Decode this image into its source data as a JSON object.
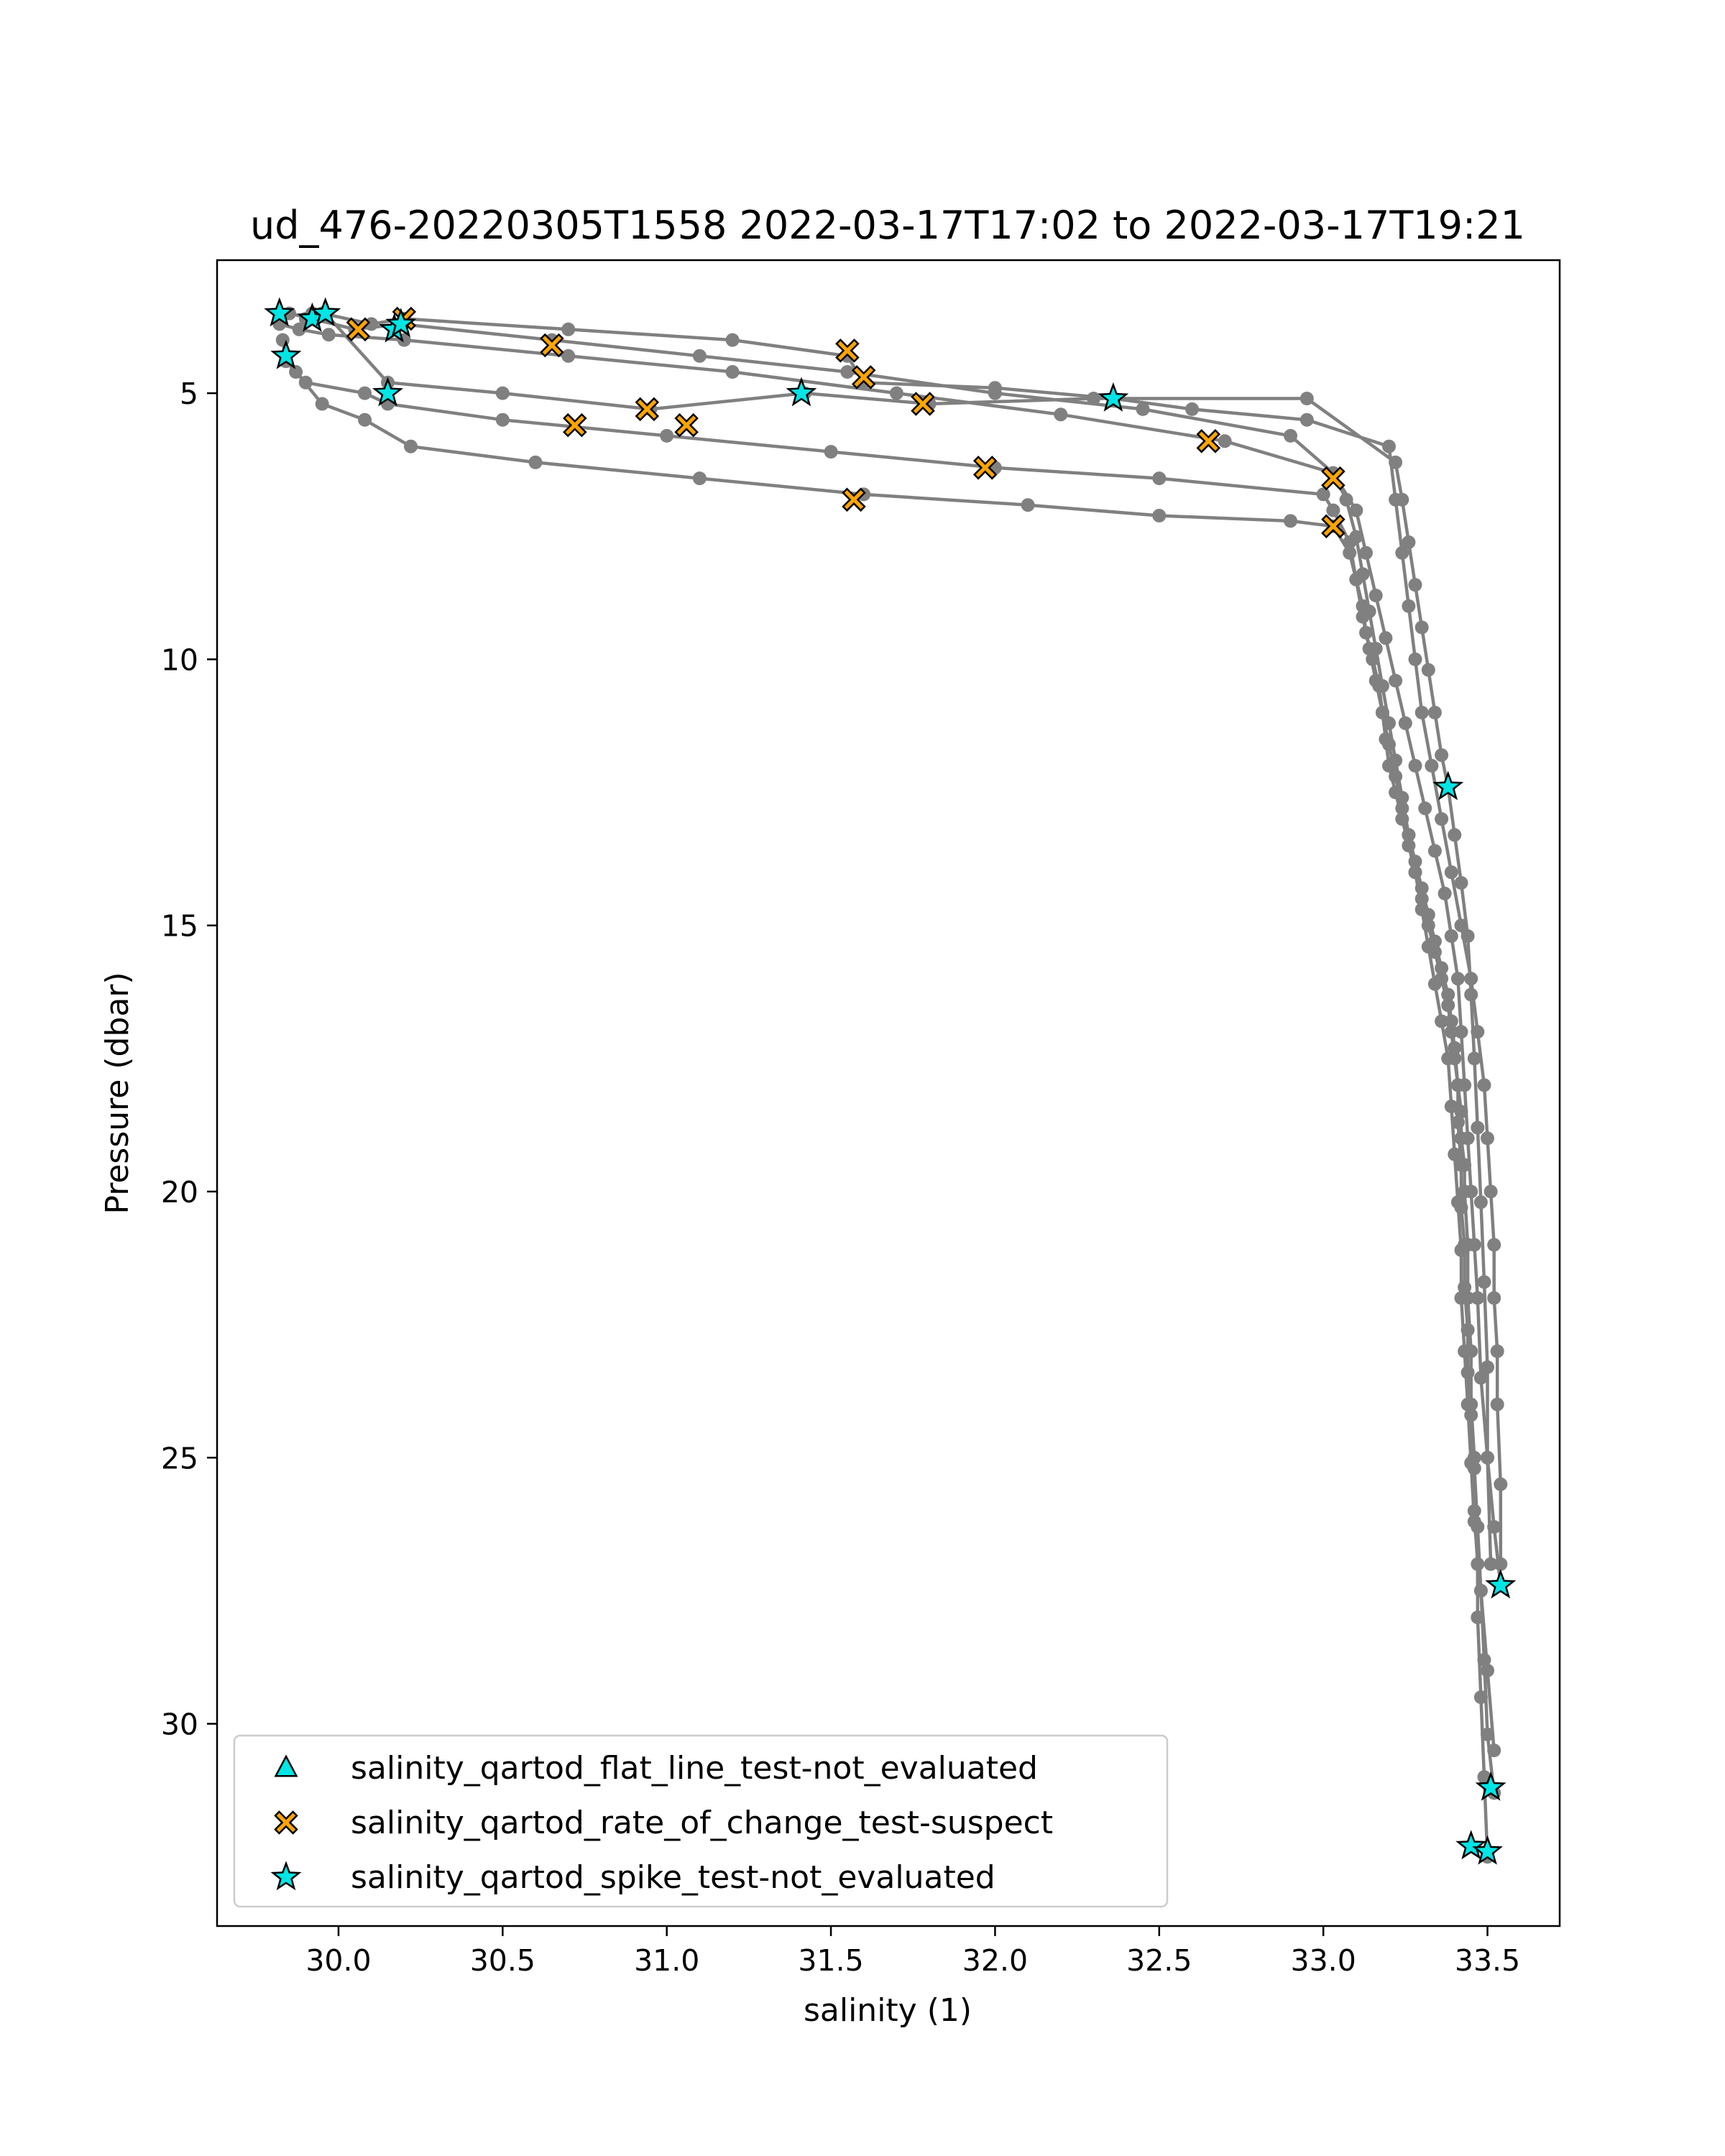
{
  "chart_data": {
    "type": "line",
    "title": "ud_476-20220305T1558 2022-03-17T17:02 to 2022-03-17T19:21",
    "xlabel": "salinity (1)",
    "ylabel": "Pressure (dbar)",
    "xlim": [
      29.63,
      33.72
    ],
    "ylim": [
      33.8,
      2.5
    ],
    "y_inverted": true,
    "grid": false,
    "legend_position": "lower-left",
    "x_ticks": [
      30.0,
      30.5,
      31.0,
      31.5,
      32.0,
      32.5,
      33.0,
      33.5
    ],
    "x_tick_labels": [
      "30.0",
      "30.5",
      "31.0",
      "31.5",
      "32.0",
      "32.5",
      "33.0",
      "33.5"
    ],
    "y_ticks": [
      5,
      10,
      15,
      20,
      25,
      30
    ],
    "y_tick_labels": [
      "5",
      "10",
      "15",
      "20",
      "25",
      "30"
    ],
    "colors": {
      "profile_line": "#808080",
      "flat_line": "#00e5e5",
      "rate_of_change": "#ffa500",
      "spike": "#00e5e5"
    },
    "profiles": [
      {
        "x": [
          29.84,
          29.87,
          29.95,
          30.08,
          30.22,
          30.6,
          31.1,
          31.6,
          32.1,
          32.5,
          32.9,
          33.03,
          33.08,
          33.1,
          33.12,
          33.13,
          33.15,
          33.17,
          33.18,
          33.19,
          33.2,
          33.22,
          33.24,
          33.26,
          33.28,
          33.3,
          33.32,
          33.34,
          33.36,
          33.38,
          33.39,
          33.4,
          33.41,
          33.42,
          33.42,
          33.43,
          33.43,
          33.44,
          33.44,
          33.45,
          33.45,
          33.46,
          33.46,
          33.47,
          33.47,
          33.48,
          33.49,
          33.5
        ],
        "y": [
          4.3,
          4.6,
          5.2,
          5.5,
          6.0,
          6.3,
          6.6,
          6.9,
          7.1,
          7.3,
          7.4,
          7.5,
          8.0,
          8.5,
          9.0,
          9.5,
          10.0,
          10.5,
          11.0,
          11.5,
          12.0,
          12.5,
          13.0,
          13.5,
          14.0,
          14.5,
          15.0,
          15.5,
          16.0,
          16.5,
          17.0,
          17.5,
          18.0,
          18.5,
          19.0,
          19.5,
          20.0,
          21.0,
          22.0,
          23.0,
          24.0,
          25.0,
          26.0,
          27.0,
          28.0,
          29.5,
          31.0,
          32.5
        ]
      },
      {
        "x": [
          29.83,
          29.84,
          29.9,
          30.08,
          30.15,
          30.5,
          31.0,
          31.5,
          32.0,
          32.5,
          33.0,
          33.03,
          33.08,
          33.1,
          33.12,
          33.14,
          33.16,
          33.18,
          33.2,
          33.22,
          33.24,
          33.26,
          33.28,
          33.3,
          33.32,
          33.34,
          33.36,
          33.38,
          33.39,
          33.4,
          33.41,
          33.41,
          33.42,
          33.42,
          33.43,
          33.43,
          33.44,
          33.44,
          33.45,
          33.46,
          33.47,
          33.48,
          33.49,
          33.5,
          33.52
        ],
        "y": [
          4.0,
          4.4,
          4.8,
          5.0,
          5.2,
          5.5,
          5.8,
          6.1,
          6.4,
          6.6,
          6.9,
          7.2,
          7.8,
          8.5,
          9.2,
          9.8,
          10.4,
          11.0,
          11.6,
          12.2,
          12.8,
          13.3,
          13.8,
          14.3,
          14.8,
          15.3,
          15.8,
          16.3,
          16.8,
          17.3,
          18.0,
          18.7,
          19.5,
          20.3,
          21.0,
          21.8,
          22.6,
          23.4,
          24.2,
          25.2,
          26.3,
          27.5,
          28.8,
          30.2,
          31.3
        ]
      },
      {
        "x": [
          29.82,
          29.88,
          29.97,
          30.2,
          30.7,
          31.2,
          31.7,
          32.2,
          32.7,
          33.03,
          33.07,
          33.1,
          33.12,
          33.14,
          33.16,
          33.18,
          33.2,
          33.22,
          33.24,
          33.26,
          33.28,
          33.3,
          33.32,
          33.34,
          33.36,
          33.38,
          33.39,
          33.4,
          33.41,
          33.42,
          33.42,
          33.43,
          33.44,
          33.45,
          33.46,
          33.48,
          33.5,
          33.52
        ],
        "y": [
          3.7,
          3.8,
          3.9,
          4.0,
          4.3,
          4.6,
          5.0,
          5.4,
          5.9,
          6.5,
          7.0,
          7.7,
          8.4,
          9.1,
          9.8,
          10.5,
          11.2,
          11.9,
          12.6,
          13.3,
          14.0,
          14.7,
          15.4,
          16.1,
          16.8,
          17.5,
          18.4,
          19.3,
          20.2,
          21.1,
          22.0,
          23.0,
          24.0,
          25.1,
          26.2,
          27.5,
          29.0,
          30.5
        ]
      },
      {
        "x": [
          29.85,
          29.92,
          30.05,
          30.19,
          30.65,
          31.1,
          31.55,
          32.0,
          32.45,
          32.9,
          33.03,
          33.1,
          33.13,
          33.16,
          33.19,
          33.22,
          33.25,
          33.28,
          33.31,
          33.34,
          33.37,
          33.39,
          33.41,
          33.42,
          33.43,
          33.44,
          33.45,
          33.46,
          33.47,
          33.48,
          33.5,
          33.52,
          33.54
        ],
        "y": [
          3.5,
          3.6,
          3.8,
          3.7,
          4.0,
          4.3,
          4.6,
          5.0,
          5.3,
          5.8,
          6.5,
          7.2,
          8.0,
          8.8,
          9.6,
          10.4,
          11.2,
          12.0,
          12.8,
          13.6,
          14.4,
          15.2,
          16.0,
          17.0,
          18.0,
          19.0,
          20.0,
          21.0,
          22.0,
          23.5,
          25.0,
          26.3,
          27.4
        ]
      },
      {
        "x": [
          29.9,
          29.95,
          30.1,
          30.2,
          30.7,
          31.2,
          31.55,
          31.6,
          32.0,
          32.36,
          32.6,
          32.95,
          33.2,
          33.22,
          33.24,
          33.26,
          33.28,
          33.3,
          33.33,
          33.36,
          33.39,
          33.42,
          33.45,
          33.47,
          33.49,
          33.5,
          33.51,
          33.52,
          33.52,
          33.53,
          33.53,
          33.54,
          33.54
        ],
        "y": [
          3.6,
          3.5,
          3.7,
          3.6,
          3.8,
          4.0,
          4.3,
          4.8,
          4.9,
          5.1,
          5.3,
          5.5,
          6.0,
          7.0,
          8.0,
          9.0,
          10.0,
          11.0,
          12.0,
          13.0,
          14.0,
          15.0,
          16.0,
          17.0,
          18.0,
          19.0,
          20.0,
          21.0,
          22.0,
          23.0,
          24.0,
          25.5,
          27.0
        ]
      },
      {
        "x": [
          29.92,
          29.96,
          30.15,
          30.5,
          30.95,
          31.42,
          31.8,
          32.3,
          32.95,
          33.22,
          33.24,
          33.26,
          33.28,
          33.3,
          33.32,
          33.34,
          33.36,
          33.38,
          33.4,
          33.42,
          33.44,
          33.45,
          33.46,
          33.47,
          33.48,
          33.49,
          33.5,
          33.5,
          33.51
        ],
        "y": [
          3.5,
          3.5,
          4.8,
          5.0,
          5.3,
          5.0,
          5.2,
          5.1,
          5.1,
          6.3,
          7.0,
          7.8,
          8.6,
          9.4,
          10.2,
          11.0,
          11.8,
          12.4,
          13.3,
          14.2,
          15.2,
          16.3,
          17.5,
          18.8,
          20.2,
          21.7,
          23.3,
          25.0,
          27.0
        ]
      }
    ],
    "marker_series": [
      {
        "name": "salinity_qartod_flat_line_test-not_evaluated",
        "marker": "triangle",
        "x": [],
        "y": []
      },
      {
        "name": "salinity_qartod_rate_of_change_test-suspect",
        "marker": "x",
        "x": [
          30.06,
          30.2,
          30.65,
          30.72,
          30.94,
          31.06,
          31.55,
          31.57,
          31.6,
          31.78,
          31.97,
          32.65,
          33.03,
          33.03
        ],
        "y": [
          3.8,
          3.6,
          4.1,
          5.6,
          5.3,
          5.6,
          4.2,
          7.0,
          4.7,
          5.2,
          6.4,
          5.9,
          6.6,
          7.5
        ]
      },
      {
        "name": "salinity_qartod_spike_test-not_evaluated",
        "marker": "star",
        "x": [
          29.82,
          29.84,
          29.92,
          29.96,
          30.15,
          30.17,
          30.19,
          31.41,
          32.36,
          33.38,
          33.45,
          33.5,
          33.51,
          33.54
        ],
        "y": [
          3.5,
          4.3,
          3.6,
          3.5,
          5.0,
          3.8,
          3.7,
          5.0,
          5.1,
          12.4,
          32.3,
          32.4,
          31.2,
          27.4
        ]
      }
    ]
  }
}
